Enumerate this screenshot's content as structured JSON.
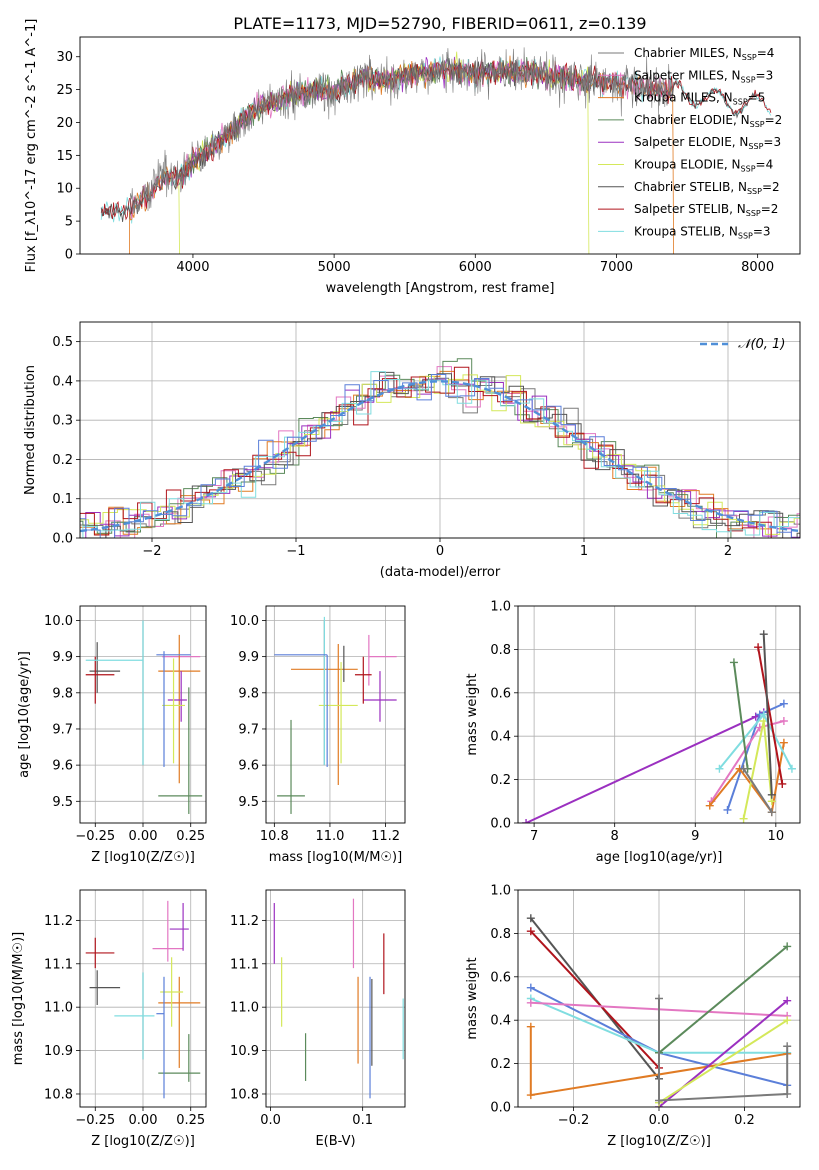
{
  "figure_title": "PLATE=1173, MJD=52790, FIBERID=0611, z=0.139",
  "colors": {
    "Chabrier MILES": "#7a7a7a",
    "Salpeter MILES": "#e377c2",
    "Kroupa MILES": "#e07b24",
    "Chabrier ELODIE": "#5b8a5b",
    "Salpeter ELODIE": "#9b30c0",
    "Kroupa ELODIE": "#d4e85a",
    "Chabrier STELIB": "#555555",
    "Salpeter STELIB": "#b0141c",
    "Kroupa STELIB": "#80dde0",
    "blue": "#5b7fd9",
    "normal": "#4f8fd8"
  },
  "chart_data": [
    {
      "id": "spectrum",
      "type": "line",
      "xlabel": "wavelength [Angstrom, rest frame]",
      "ylabel": "Flux [f_λ10^-17 erg cm^-2 s^-1 A^-1]",
      "xlim": [
        3200,
        8300
      ],
      "ylim": [
        0,
        33
      ],
      "xticks": [
        4000,
        5000,
        6000,
        7000,
        8000
      ],
      "yticks": [
        0,
        5,
        10,
        15,
        20,
        25,
        30
      ],
      "grid": false,
      "legend_position": "top-right",
      "legend": [
        {
          "name": "Chabrier MILES",
          "nssp": "4"
        },
        {
          "name": "Salpeter MILES",
          "nssp": "3"
        },
        {
          "name": "Kroupa MILES",
          "nssp": "5"
        },
        {
          "name": "Chabrier ELODIE",
          "nssp": "2"
        },
        {
          "name": "Salpeter ELODIE",
          "nssp": "3"
        },
        {
          "name": "Kroupa ELODIE",
          "nssp": "4"
        },
        {
          "name": "Chabrier STELIB",
          "nssp": "2"
        },
        {
          "name": "Salpeter STELIB",
          "nssp": "2"
        },
        {
          "name": "Kroupa STELIB",
          "nssp": "3"
        }
      ],
      "continuum": {
        "x": [
          3350,
          3500,
          3600,
          3700,
          3800,
          3900,
          4000,
          4100,
          4200,
          4300,
          4400,
          4500,
          4700,
          4900,
          5000,
          5200,
          5400,
          5600,
          5800,
          6000,
          6200,
          6400,
          6600,
          6800,
          7000,
          7200,
          7400,
          7600,
          7800,
          8050
        ],
        "y": [
          6.5,
          6.5,
          7.5,
          9.5,
          12.0,
          11.5,
          14.0,
          15.5,
          17.5,
          19.0,
          21.5,
          22.5,
          24.0,
          25.0,
          24.5,
          27.0,
          26.5,
          27.5,
          28.0,
          27.5,
          28.0,
          27.5,
          27.0,
          26.5,
          26.0,
          25.5,
          24.5,
          24.0,
          23.0,
          22.5
        ]
      }
    },
    {
      "id": "residuals",
      "type": "histogram",
      "xlabel": "(data-model)/error",
      "ylabel": "Normed distribution",
      "xlim": [
        -2.5,
        2.5
      ],
      "ylim": [
        0,
        0.55
      ],
      "xticks": [
        -2,
        -1,
        0,
        1,
        2
      ],
      "yticks": [
        0.0,
        0.1,
        0.2,
        0.3,
        0.4,
        0.5
      ],
      "grid": true,
      "legend": "𝒩(0, 1)",
      "legend_position": "top-right"
    },
    {
      "id": "age-vs-Z",
      "type": "scatter",
      "xlabel": "Z [log10(Z/Z☉)]",
      "ylabel": "age  [log10(age/yr)]",
      "xlim": [
        -0.33,
        0.33
      ],
      "ylim": [
        9.44,
        10.04
      ],
      "xticks": [
        -0.25,
        0.0,
        0.25
      ],
      "yticks": [
        9.5,
        9.6,
        9.7,
        9.8,
        9.9,
        10.0
      ],
      "grid": true,
      "points": [
        {
          "series": "Chabrier MILES",
          "x": 0.0,
          "y": 9.8,
          "xerr": [
            0.0,
            0.0
          ],
          "yerr": [
            0.2,
            0.2
          ]
        },
        {
          "series": "Salpeter MILES",
          "x": 0.2,
          "y": 9.9,
          "xerr": [
            0.1,
            0.1
          ],
          "yerr": [
            0.0,
            0.0
          ]
        },
        {
          "series": "Kroupa MILES",
          "x": 0.19,
          "y": 9.86,
          "xerr": [
            0.11,
            0.11
          ],
          "yerr": [
            0.31,
            0.1
          ]
        },
        {
          "series": "Chabrier ELODIE",
          "x": 0.24,
          "y": 9.515,
          "xerr": [
            0.16,
            0.07
          ],
          "yerr": [
            0.05,
            0.3
          ]
        },
        {
          "series": "Salpeter ELODIE",
          "x": 0.2,
          "y": 9.78,
          "xerr": [
            0.07,
            0.03
          ],
          "yerr": [
            0.06,
            0.08
          ]
        },
        {
          "series": "Kroupa ELODIE",
          "x": 0.16,
          "y": 9.765,
          "xerr": [
            0.06,
            0.06
          ],
          "yerr": [
            0.16,
            0.13
          ]
        },
        {
          "series": "Chabrier STELIB",
          "x": -0.24,
          "y": 9.86,
          "xerr": [
            0.04,
            0.12
          ],
          "yerr": [
            0.06,
            0.08
          ]
        },
        {
          "series": "Salpeter STELIB",
          "x": -0.25,
          "y": 9.85,
          "xerr": [
            0.05,
            0.1
          ],
          "yerr": [
            0.08,
            0.05
          ]
        },
        {
          "series": "Kroupa STELIB",
          "x": 0.0,
          "y": 9.89,
          "xerr": [
            0.3,
            0.0
          ],
          "yerr": [
            0.29,
            0.11
          ]
        },
        {
          "series": "blue",
          "x": 0.11,
          "y": 9.905,
          "xerr": [
            0.04,
            0.14
          ],
          "yerr": [
            0.31,
            0.01
          ]
        }
      ]
    },
    {
      "id": "age-vs-mass",
      "type": "scatter",
      "xlabel": "mass [log10(M/M☉)]",
      "ylabel": "",
      "xlim": [
        10.77,
        11.27
      ],
      "ylim": [
        9.44,
        10.04
      ],
      "xticks": [
        10.8,
        11.0,
        11.2
      ],
      "yticks": [
        9.5,
        9.6,
        9.7,
        9.8,
        9.9,
        10.0
      ],
      "grid": true,
      "points": [
        {
          "series": "Chabrier MILES",
          "x": 10.98,
          "y": 9.8,
          "xerr": [
            0.0,
            0.0
          ],
          "yerr": [
            0.2,
            0.2
          ]
        },
        {
          "series": "Salpeter MILES",
          "x": 11.14,
          "y": 9.9,
          "xerr": [
            0.0,
            0.1
          ],
          "yerr": [
            0.08,
            0.06
          ]
        },
        {
          "series": "Kroupa MILES",
          "x": 11.03,
          "y": 9.865,
          "xerr": [
            0.17,
            0.07
          ],
          "yerr": [
            0.32,
            0.07
          ]
        },
        {
          "series": "Chabrier ELODIE",
          "x": 10.86,
          "y": 9.515,
          "xerr": [
            0.05,
            0.05
          ],
          "yerr": [
            0.05,
            0.21
          ]
        },
        {
          "series": "Salpeter ELODIE",
          "x": 11.18,
          "y": 9.78,
          "xerr": [
            0.06,
            0.06
          ],
          "yerr": [
            0.06,
            0.08
          ]
        },
        {
          "series": "Kroupa ELODIE",
          "x": 11.04,
          "y": 9.765,
          "xerr": [
            0.08,
            0.06
          ],
          "yerr": [
            0.16,
            0.12
          ]
        },
        {
          "series": "Chabrier STELIB",
          "x": 11.05,
          "y": 9.86,
          "xerr": [
            0.0,
            0.0
          ],
          "yerr": [
            0.03,
            0.07
          ]
        },
        {
          "series": "Salpeter STELIB",
          "x": 11.12,
          "y": 9.85,
          "xerr": [
            0.03,
            0.03
          ],
          "yerr": [
            0.08,
            0.05
          ]
        },
        {
          "series": "Kroupa STELIB",
          "x": 10.98,
          "y": 9.9,
          "xerr": [
            0.0,
            0.0
          ],
          "yerr": [
            0.3,
            0.11
          ]
        },
        {
          "series": "blue",
          "x": 10.99,
          "y": 9.905,
          "xerr": [
            0.19,
            0.0
          ],
          "yerr": [
            0.31,
            0.0
          ]
        }
      ]
    },
    {
      "id": "mass-weight-vs-age",
      "type": "line",
      "xlabel": "age  [log10(age/yr)]",
      "ylabel": "mass weight",
      "xlim": [
        6.8,
        10.3
      ],
      "ylim": [
        0,
        1.0
      ],
      "xticks": [
        7,
        8,
        9,
        10
      ],
      "yticks": [
        0.0,
        0.2,
        0.4,
        0.6,
        0.8,
        1.0
      ],
      "grid": true,
      "series": [
        {
          "name": "Salpeter ELODIE",
          "x": [
            6.9,
            9.75,
            9.85
          ],
          "y": [
            0.0,
            0.49,
            0.51
          ]
        },
        {
          "name": "blue",
          "x": [
            9.4,
            9.8,
            10.1
          ],
          "y": [
            0.06,
            0.5,
            0.55
          ]
        },
        {
          "name": "Salpeter MILES",
          "x": [
            9.2,
            9.8,
            10.1
          ],
          "y": [
            0.1,
            0.44,
            0.47
          ]
        },
        {
          "name": "Kroupa MILES",
          "x": [
            9.18,
            9.55,
            9.95,
            10.1
          ],
          "y": [
            0.08,
            0.25,
            0.05,
            0.37
          ]
        },
        {
          "name": "Kroupa ELODIE",
          "x": [
            9.6,
            9.85,
            9.95
          ],
          "y": [
            0.02,
            0.47,
            0.1
          ]
        },
        {
          "name": "Kroupa STELIB",
          "x": [
            9.3,
            9.85,
            10.2
          ],
          "y": [
            0.25,
            0.5,
            0.25
          ]
        },
        {
          "name": "Chabrier ELODIE",
          "x": [
            9.48,
            9.65
          ],
          "y": [
            0.74,
            0.25
          ]
        },
        {
          "name": "Salpeter STELIB",
          "x": [
            9.78,
            10.08
          ],
          "y": [
            0.81,
            0.18
          ]
        },
        {
          "name": "Chabrier STELIB",
          "x": [
            9.85,
            9.95
          ],
          "y": [
            0.87,
            0.13
          ]
        },
        {
          "name": "Chabrier MILES",
          "x": [
            9.6,
            9.95
          ],
          "y": [
            0.25,
            0.05
          ]
        }
      ]
    },
    {
      "id": "mass-vs-Z",
      "type": "scatter",
      "xlabel": "Z [log10(Z/Z☉)]",
      "ylabel": "mass [log10(M/M☉)]",
      "xlim": [
        -0.33,
        0.33
      ],
      "ylim": [
        10.77,
        11.27
      ],
      "xticks": [
        -0.25,
        0.0,
        0.25
      ],
      "yticks": [
        10.8,
        10.9,
        11.0,
        11.1,
        11.2
      ],
      "grid": true,
      "points": [
        {
          "series": "Chabrier MILES",
          "x": 0.0,
          "y": 10.98,
          "xerr": [
            0.0,
            0.0
          ],
          "yerr": [
            0.1,
            0.1
          ]
        },
        {
          "series": "Salpeter MILES",
          "x": 0.13,
          "y": 11.135,
          "xerr": [
            0.08,
            0.08
          ],
          "yerr": [
            0.03,
            0.11
          ]
        },
        {
          "series": "Kroupa MILES",
          "x": 0.19,
          "y": 11.01,
          "xerr": [
            0.11,
            0.11
          ],
          "yerr": [
            0.15,
            0.06
          ]
        },
        {
          "series": "Chabrier ELODIE",
          "x": 0.24,
          "y": 10.848,
          "xerr": [
            0.16,
            0.06
          ],
          "yerr": [
            0.02,
            0.09
          ]
        },
        {
          "series": "Salpeter ELODIE",
          "x": 0.21,
          "y": 11.18,
          "xerr": [
            0.07,
            0.03
          ],
          "yerr": [
            0.05,
            0.06
          ]
        },
        {
          "series": "Kroupa ELODIE",
          "x": 0.15,
          "y": 11.035,
          "xerr": [
            0.06,
            0.06
          ],
          "yerr": [
            0.08,
            0.08
          ]
        },
        {
          "series": "Chabrier STELIB",
          "x": -0.24,
          "y": 11.045,
          "xerr": [
            0.04,
            0.12
          ],
          "yerr": [
            0.04,
            0.04
          ]
        },
        {
          "series": "Salpeter STELIB",
          "x": -0.25,
          "y": 11.125,
          "xerr": [
            0.05,
            0.1
          ],
          "yerr": [
            0.035,
            0.035
          ]
        },
        {
          "series": "Kroupa STELIB",
          "x": 0.0,
          "y": 10.98,
          "xerr": [
            0.15,
            0.06
          ],
          "yerr": [
            0.1,
            0.1
          ]
        },
        {
          "series": "blue",
          "x": 0.11,
          "y": 10.985,
          "xerr": [
            0.04,
            0.0
          ],
          "yerr": [
            0.195,
            0.085
          ]
        }
      ]
    },
    {
      "id": "mass-vs-ebv",
      "type": "scatter",
      "xlabel": "E(B-V)",
      "ylabel": "",
      "xlim": [
        -0.005,
        0.146
      ],
      "ylim": [
        10.77,
        11.27
      ],
      "xticks": [
        0.0,
        0.1
      ],
      "yticks": [
        10.8,
        10.9,
        11.0,
        11.1,
        11.2
      ],
      "grid": true,
      "points": [
        {
          "series": "Salpeter ELODIE",
          "x": 0.004,
          "y": 11.17,
          "xerr": [
            0.0,
            0.0
          ],
          "yerr": [
            0.07,
            0.07
          ]
        },
        {
          "series": "Kroupa ELODIE",
          "x": 0.012,
          "y": 11.035,
          "xerr": [
            0.0,
            0.0
          ],
          "yerr": [
            0.08,
            0.08
          ]
        },
        {
          "series": "Chabrier ELODIE",
          "x": 0.038,
          "y": 10.885,
          "xerr": [
            0.0,
            0.0
          ],
          "yerr": [
            0.055,
            0.055
          ]
        },
        {
          "series": "Salpeter MILES",
          "x": 0.09,
          "y": 11.17,
          "xerr": [
            0.0,
            0.0
          ],
          "yerr": [
            0.08,
            0.08
          ]
        },
        {
          "series": "Kroupa MILES",
          "x": 0.095,
          "y": 10.97,
          "xerr": [
            0.0,
            0.0
          ],
          "yerr": [
            0.1,
            0.1
          ]
        },
        {
          "series": "blue",
          "x": 0.108,
          "y": 10.93,
          "xerr": [
            0.0,
            0.0
          ],
          "yerr": [
            0.14,
            0.14
          ]
        },
        {
          "series": "Chabrier STELIB",
          "x": 0.11,
          "y": 10.965,
          "xerr": [
            0.0,
            0.0
          ],
          "yerr": [
            0.1,
            0.1
          ]
        },
        {
          "series": "Salpeter STELIB",
          "x": 0.123,
          "y": 11.1,
          "xerr": [
            0.0,
            0.0
          ],
          "yerr": [
            0.07,
            0.07
          ]
        },
        {
          "series": "Kroupa STELIB",
          "x": 0.144,
          "y": 10.95,
          "xerr": [
            0.0,
            0.0
          ],
          "yerr": [
            0.07,
            0.07
          ]
        }
      ]
    },
    {
      "id": "mass-weight-vs-Z",
      "type": "line",
      "xlabel": "Z [log10(Z/Z☉)]",
      "ylabel": "mass weight",
      "xlim": [
        -0.33,
        0.33
      ],
      "ylim": [
        0,
        1.0
      ],
      "xticks": [
        -0.2,
        0.0,
        0.2
      ],
      "yticks": [
        0.0,
        0.2,
        0.4,
        0.6,
        0.8,
        1.0
      ],
      "grid": true,
      "series": [
        {
          "name": "Chabrier STELIB",
          "x": [
            -0.3,
            0.0
          ],
          "y": [
            0.87,
            0.13
          ]
        },
        {
          "name": "Salpeter STELIB",
          "x": [
            -0.3,
            0.0
          ],
          "y": [
            0.81,
            0.18
          ]
        },
        {
          "name": "blue",
          "x": [
            -0.3,
            0.0,
            0.3
          ],
          "y": [
            0.55,
            0.25,
            0.1
          ]
        },
        {
          "name": "Kroupa STELIB",
          "x": [
            -0.3,
            0.0,
            0.3
          ],
          "y": [
            0.5,
            0.25,
            0.25
          ]
        },
        {
          "name": "Salpeter MILES",
          "x": [
            -0.3,
            0.3
          ],
          "y": [
            0.48,
            0.42
          ]
        },
        {
          "name": "Kroupa MILES",
          "x": [
            -0.3,
            -0.3,
            0.3
          ],
          "y": [
            0.37,
            0.055,
            0.245
          ]
        },
        {
          "name": "Chabrier ELODIE",
          "x": [
            0.0,
            0.3
          ],
          "y": [
            0.25,
            0.74
          ]
        },
        {
          "name": "Salpeter ELODIE",
          "x": [
            0.0,
            0.3
          ],
          "y": [
            0.0,
            0.49
          ]
        },
        {
          "name": "Kroupa ELODIE",
          "x": [
            0.0,
            0.3
          ],
          "y": [
            0.02,
            0.4
          ]
        },
        {
          "name": "Chabrier MILES",
          "x": [
            0.0,
            0.0,
            0.3,
            0.3
          ],
          "y": [
            0.5,
            0.03,
            0.06,
            0.28
          ]
        }
      ]
    }
  ]
}
